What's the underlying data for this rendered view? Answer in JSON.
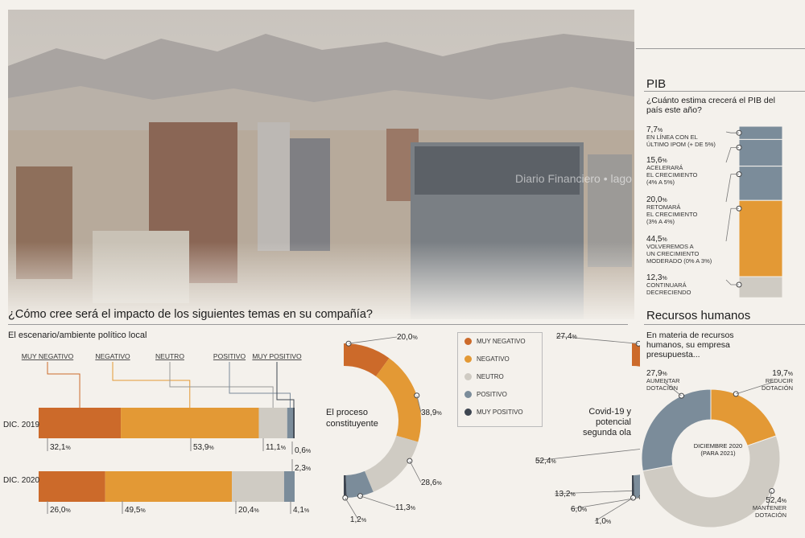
{
  "page": {
    "question": "¿Cómo cree será el impacto de los siguientes temas en su compañía?",
    "subtitle": "El escenario/ambiente político local",
    "watermark": "Diario Financiero • lago"
  },
  "colors": {
    "muy_negativo": "#cc6a2a",
    "negativo": "#e39935",
    "neutro": "#cfcbc3",
    "positivo": "#7b8c9a",
    "muy_positivo": "#3e4651"
  },
  "legend": [
    "MUY NEGATIVO",
    "NEGATIVO",
    "NEUTRO",
    "POSITIVO",
    "MUY POSITIVO"
  ],
  "chart_data": [
    {
      "type": "bar",
      "orientation": "horizontal-stacked",
      "title": "El escenario/ambiente político local",
      "categories": [
        "DIC. 2019",
        "DIC. 2020"
      ],
      "series": [
        {
          "name": "MUY NEGATIVO",
          "values": [
            32.1,
            26.0
          ]
        },
        {
          "name": "NEGATIVO",
          "values": [
            53.9,
            49.5
          ]
        },
        {
          "name": "NEUTRO",
          "values": [
            11.1,
            20.4
          ]
        },
        {
          "name": "POSITIVO",
          "values": [
            2.3,
            4.1
          ]
        },
        {
          "name": "MUY POSITIVO",
          "values": [
            0.6,
            0.0
          ]
        }
      ],
      "value_labels": {
        "DIC. 2019": [
          "32,1%",
          "53,9%",
          "11,1%",
          "2,3%",
          "0,6%"
        ],
        "DIC. 2020": [
          "26,0%",
          "49,5%",
          "20,4%",
          "4,1%"
        ]
      },
      "row_labels": [
        "DIC. 2019",
        "DIC. 2020"
      ]
    },
    {
      "type": "pie",
      "title": "El proceso constituyente",
      "labels": [
        "MUY NEGATIVO",
        "NEGATIVO",
        "NEUTRO",
        "POSITIVO",
        "MUY POSITIVO"
      ],
      "values": [
        20.0,
        38.9,
        28.6,
        11.3,
        1.2
      ],
      "value_labels": [
        "20,0%",
        "38,9%",
        "28,6%",
        "11,3%",
        "1,2%"
      ]
    },
    {
      "type": "pie",
      "title": "Covid-19 y potencial segunda ola",
      "labels": [
        "MUY NEGATIVO",
        "NEGATIVO",
        "NEUTRO",
        "POSITIVO",
        "MUY POSITIVO"
      ],
      "values": [
        27.4,
        52.4,
        13.2,
        6.0,
        1.0
      ],
      "value_labels": [
        "27,4%",
        "52,4%",
        "13,2%",
        "6,0%",
        "1,0%"
      ]
    },
    {
      "type": "bar",
      "orientation": "vertical-stacked",
      "title": "PIB",
      "question": "¿Cuánto estima crecerá el PIB del país este año?",
      "categories": [
        "EN LÍNEA CON EL ÚLTIMO IPOM (+ DE 5%)",
        "ACELERARÁ EL CRECIMIENTO (4% A 5%)",
        "RETOMARÁ EL CRECIMIENTO (3% A 4%)",
        "VOLVEREMOS A UN CRECIMIENTO MODERADO (0% A 3%)",
        "CONTINUARÁ DECRECIENDO"
      ],
      "values": [
        7.7,
        15.6,
        20.0,
        44.5,
        12.3
      ],
      "value_labels": [
        "7,7%",
        "15,6%",
        "20,0%",
        "44,5%",
        "12,3%"
      ]
    },
    {
      "type": "pie",
      "title": "Recursos humanos",
      "question": "En materia de recursos humanos, su empresa presupuesta...",
      "center_label": "DICIEMBRE 2020 (PARA 2021)",
      "labels": [
        "REDUCIR DOTACIÓN",
        "MANTENER DOTACIÓN",
        "AUMENTAR DOTACIÓN"
      ],
      "values": [
        19.7,
        52.4,
        27.9
      ],
      "value_labels": [
        "19,7%",
        "52,4%",
        "27,9%"
      ]
    }
  ],
  "text": {
    "row2019": "DIC. 2019",
    "row2020": "DIC. 2020",
    "donut1_title": "El proceso constituyente",
    "donut2_title": "Covid-19 y potencial segunda ola",
    "pib_title": "PIB",
    "pib_question": "¿Cuánto estima crecerá el PIB del país este año?",
    "rh_title": "Recursos humanos",
    "rh_question": "En materia de recursos humanos, su empresa presupuesta...",
    "rh_center": "DICIEMBRE 2020 (PARA 2021)",
    "rh_labels": {
      "reducir": "REDUCIR DOTACIÓN",
      "mantener": "MANTENER DOTACIÓN",
      "aumentar": "AUMENTAR DOTACIÓN"
    }
  }
}
